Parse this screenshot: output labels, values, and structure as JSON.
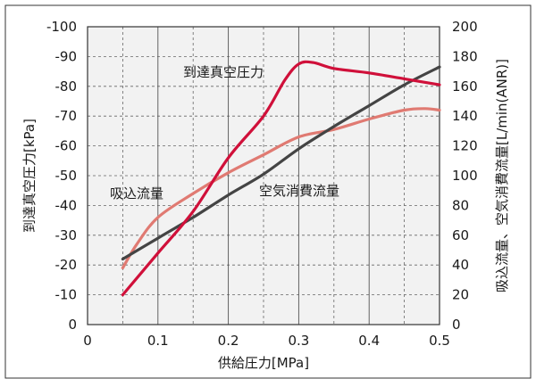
{
  "chart_data": {
    "type": "line",
    "xlabel": "供給圧力[MPa]",
    "ylabel_left": "到達真空圧力[kPa]",
    "ylabel_right": "吸込流量、空気消費流量[L/min(ANR)]",
    "x_range": [
      0,
      0.5
    ],
    "x_ticks": [
      0,
      0.1,
      0.2,
      0.3,
      0.4,
      0.5
    ],
    "x_tick_labels": [
      "0",
      "0.1",
      "0.2",
      "0.3",
      "0.4",
      "0.5"
    ],
    "y_left_range": [
      0,
      -100
    ],
    "y_left_ticks": [
      0,
      -10,
      -20,
      -30,
      -40,
      -50,
      -60,
      -70,
      -80,
      -90,
      -100
    ],
    "y_left_tick_labels": [
      "0",
      "-10",
      "-20",
      "-30",
      "-40",
      "-50",
      "-60",
      "-70",
      "-80",
      "-90",
      "-100"
    ],
    "y_right_range": [
      0,
      200
    ],
    "y_right_ticks": [
      0,
      20,
      40,
      60,
      80,
      100,
      120,
      140,
      160,
      180,
      200
    ],
    "y_right_tick_labels": [
      "0",
      "20",
      "40",
      "60",
      "80",
      "100",
      "120",
      "140",
      "160",
      "180",
      "200"
    ],
    "grid": {
      "vertical_major": "solid",
      "vertical_minor": "dashed",
      "horizontal": "dashed"
    },
    "series": [
      {
        "name": "到達真空圧力",
        "axis": "left",
        "color": "#d0103a",
        "x": [
          0.05,
          0.1,
          0.15,
          0.2,
          0.25,
          0.28,
          0.3,
          0.32,
          0.35,
          0.4,
          0.45,
          0.5
        ],
        "y": [
          -10,
          -24,
          -38,
          -56,
          -70,
          -82,
          -87.5,
          -88,
          -86,
          -84.5,
          -82.5,
          -80.5
        ]
      },
      {
        "name": "空気消費流量",
        "axis": "right",
        "color": "#444444",
        "x": [
          0.05,
          0.1,
          0.15,
          0.2,
          0.25,
          0.3,
          0.35,
          0.4,
          0.45,
          0.5
        ],
        "y": [
          44,
          58,
          72,
          87,
          101,
          118,
          133,
          147,
          161,
          173
        ]
      },
      {
        "name": "吸込流量",
        "axis": "right",
        "color": "#e07a72",
        "x": [
          0.05,
          0.07,
          0.1,
          0.15,
          0.2,
          0.25,
          0.3,
          0.35,
          0.4,
          0.45,
          0.48,
          0.5
        ],
        "y": [
          38,
          54,
          72,
          88,
          102,
          114,
          126,
          131,
          138,
          144,
          145,
          144
        ]
      }
    ],
    "annotations": [
      {
        "text": "到達真空圧力",
        "series": "到達真空圧力"
      },
      {
        "text": "吸込流量",
        "series": "吸込流量"
      },
      {
        "text": "空気消費流量",
        "series": "空気消費流量"
      }
    ]
  }
}
